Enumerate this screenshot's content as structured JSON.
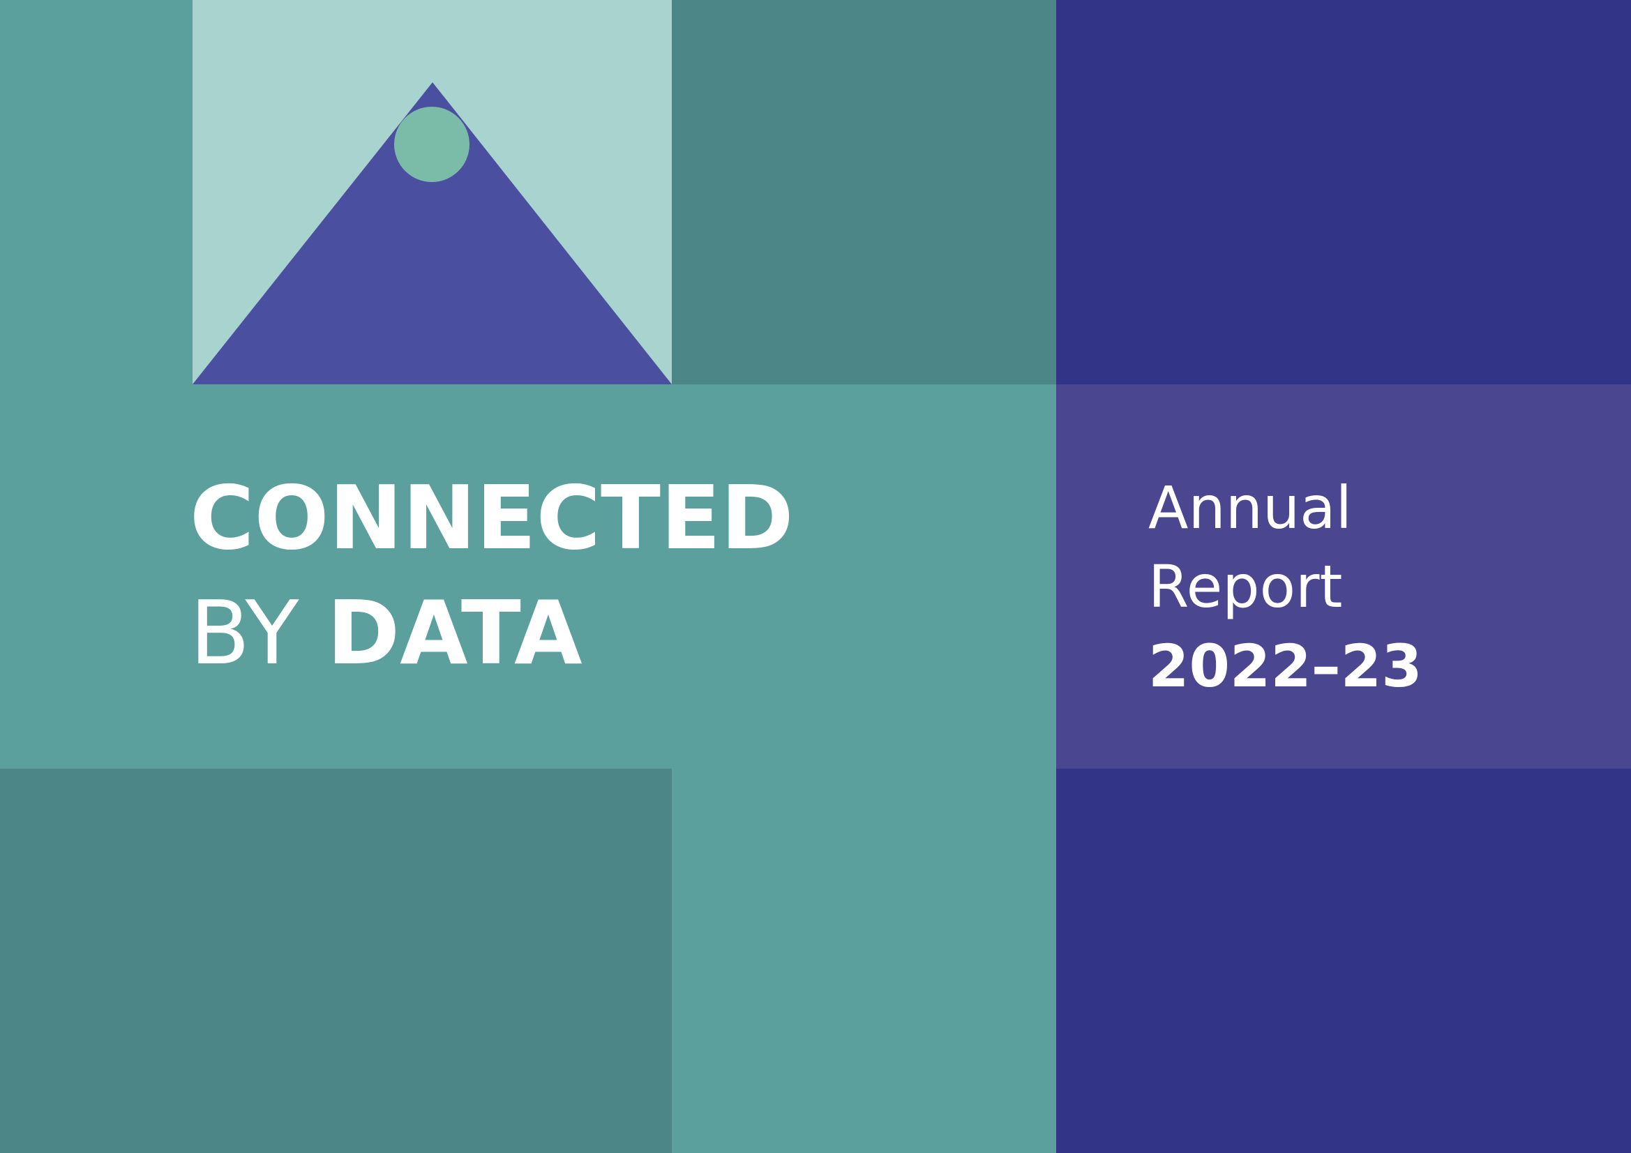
{
  "colors": {
    "teal": "#5ba09d",
    "dark_teal": "#4d8686",
    "light_teal": "#a8d3cf",
    "navy": "#323587",
    "purple": "#4b4690",
    "mountain": "#4a509f",
    "dot": "#7bbca9",
    "text": "#ffffff"
  },
  "title": {
    "line1": "CONNECTED",
    "line2_light": "BY ",
    "line2_bold": "DATA"
  },
  "report": {
    "line1": "Annual",
    "line2": "Report",
    "line3": "2022–23"
  }
}
